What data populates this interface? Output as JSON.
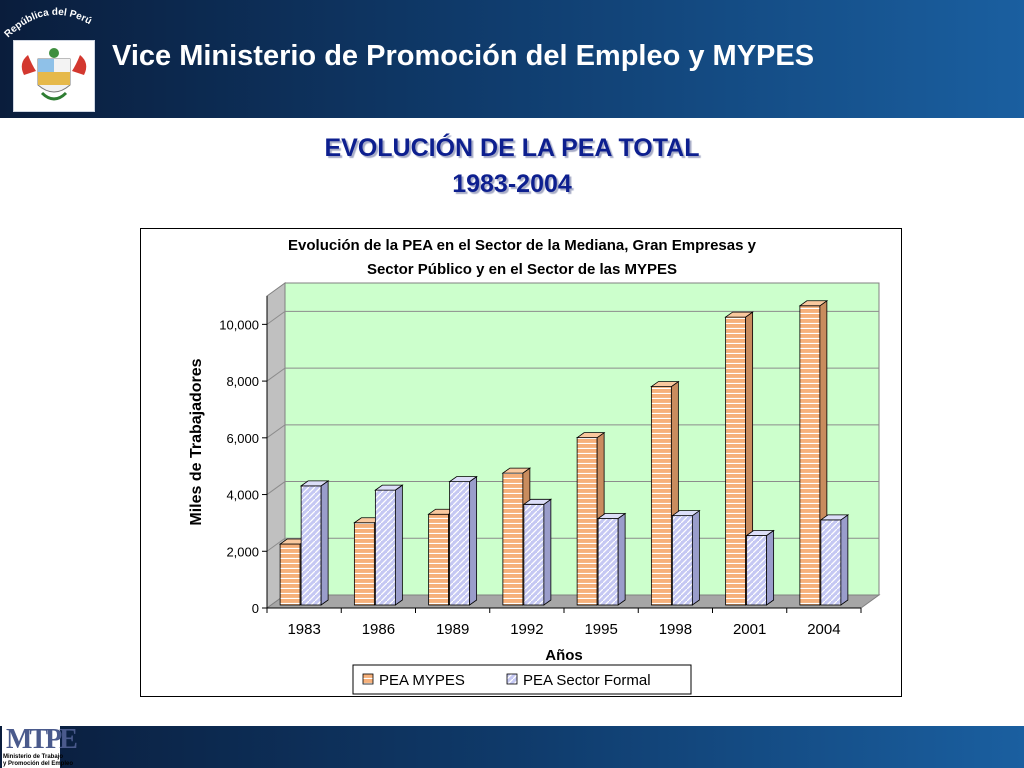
{
  "header": {
    "title": "Vice Ministerio de Promoción del Empleo y  MYPES",
    "seal_text": "República del Perú"
  },
  "slide": {
    "title_line1": "EVOLUCIÓN DE LA PEA TOTAL",
    "title_line2": "1983-2004"
  },
  "footer": {
    "logo_mark": "MTPE",
    "logo_sub_line1": "Ministerio de Trabajo",
    "logo_sub_line2": "y Promoción del Empleo"
  },
  "chart_data": {
    "type": "bar",
    "title_line1": "Evolución de la PEA en el Sector de la Mediana, Gran Empresas y",
    "title_line2": "Sector Público y en el Sector de las MYPES",
    "xlabel": "Años",
    "ylabel": "Miles de Trabajadores",
    "ylim": [
      0,
      11000
    ],
    "yticks": [
      0,
      2000,
      4000,
      6000,
      8000,
      10000
    ],
    "ytick_labels": [
      "0",
      "2,000",
      "4,000",
      "6,000",
      "8,000",
      "10,000"
    ],
    "categories": [
      "1983",
      "1986",
      "1989",
      "1992",
      "1995",
      "1998",
      "2001",
      "2004"
    ],
    "series": [
      {
        "name": "PEA MYPES",
        "values": [
          2150,
          2900,
          3200,
          4650,
          5900,
          7700,
          10150,
          10550
        ],
        "color": "#f6b07a"
      },
      {
        "name": "PEA Sector Formal",
        "values": [
          4200,
          4050,
          4350,
          3550,
          3050,
          3150,
          2450,
          3000
        ],
        "color": "#c5c8f3"
      }
    ],
    "plot_background": "#ccffcc",
    "grid": true,
    "legend_position": "bottom"
  }
}
